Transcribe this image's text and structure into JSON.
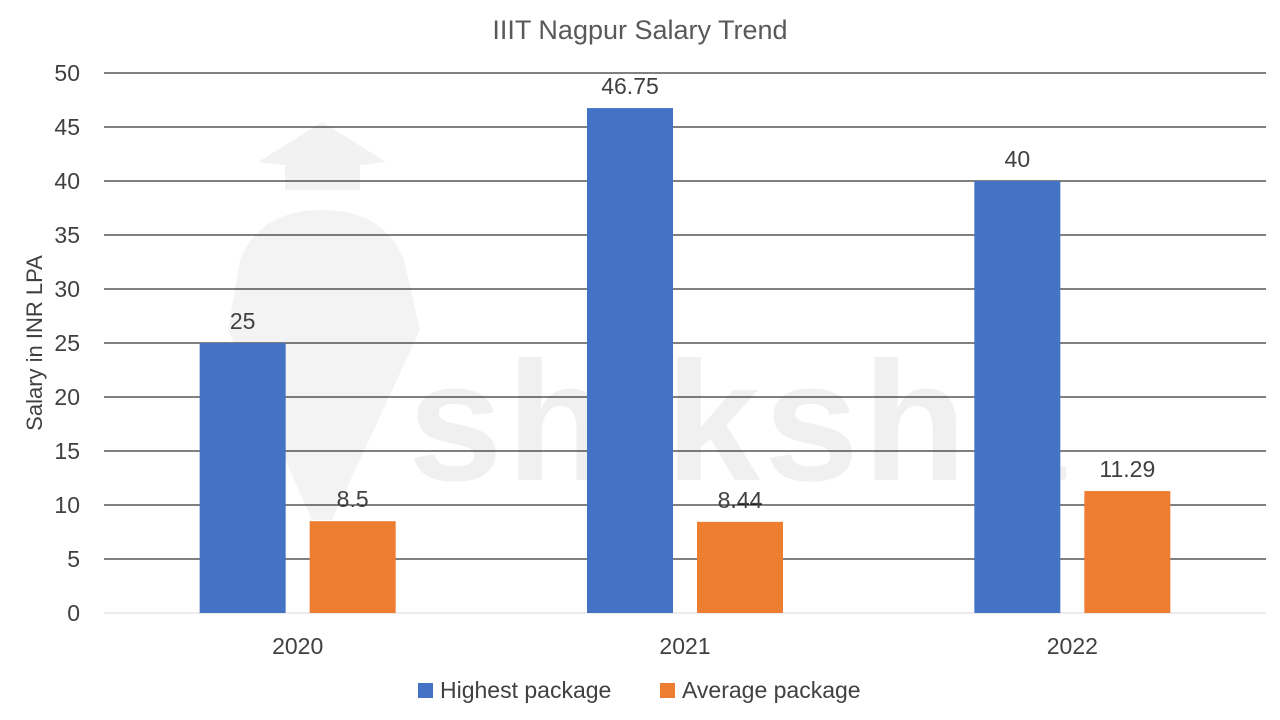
{
  "chart_data": {
    "type": "bar",
    "title": "IIIT Nagpur Salary Trend",
    "xlabel": "",
    "ylabel": "Salary in INR LPA",
    "categories": [
      "2020",
      "2021",
      "2022"
    ],
    "series": [
      {
        "name": "Highest package",
        "values": [
          25,
          46.75,
          40
        ],
        "labels": [
          "25",
          "46.75",
          "40"
        ],
        "color": "#4472C4"
      },
      {
        "name": "Average package",
        "values": [
          8.5,
          8.44,
          11.29
        ],
        "labels": [
          "8.5",
          "8.44",
          "11.29"
        ],
        "color": "#ED7D31"
      }
    ],
    "ylim": [
      0,
      50
    ],
    "yticks": [
      0,
      5,
      10,
      15,
      20,
      25,
      30,
      35,
      40,
      45,
      50
    ],
    "grid": true,
    "legend_position": "bottom"
  },
  "watermark": {
    "text": "shiksha"
  }
}
